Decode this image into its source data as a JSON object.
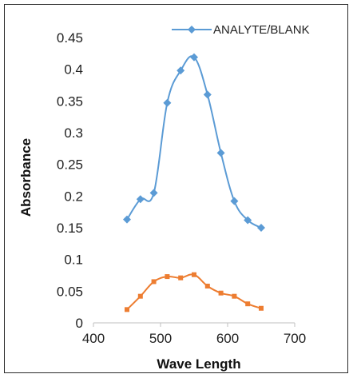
{
  "chart_data": {
    "type": "scatter",
    "xlabel": "Wave Length",
    "ylabel": "Absorbance",
    "xlim": [
      400,
      700
    ],
    "ylim": [
      0,
      0.45
    ],
    "x_ticks": [
      "400",
      "500",
      "600",
      "700"
    ],
    "y_ticks": [
      "0",
      "0.05",
      "0.1",
      "0.15",
      "0.2",
      "0.25",
      "0.3",
      "0.35",
      "0.4",
      "0.45"
    ],
    "grid": false,
    "legend_position": "top-right",
    "series": [
      {
        "name": "ANALYTE/BLANK",
        "color": "#5b9bd5",
        "marker": "diamond",
        "x": [
          450,
          470,
          490,
          510,
          530,
          550,
          570,
          590,
          610,
          630,
          650
        ],
        "y": [
          0.163,
          0.195,
          0.205,
          0.347,
          0.398,
          0.419,
          0.36,
          0.268,
          0.192,
          0.162,
          0.15
        ]
      },
      {
        "name": "",
        "color": "#ed7d31",
        "marker": "square",
        "x": [
          450,
          470,
          490,
          510,
          530,
          550,
          570,
          590,
          610,
          630,
          650
        ],
        "y": [
          0.021,
          0.042,
          0.065,
          0.073,
          0.071,
          0.076,
          0.058,
          0.047,
          0.042,
          0.03,
          0.023
        ]
      }
    ]
  }
}
